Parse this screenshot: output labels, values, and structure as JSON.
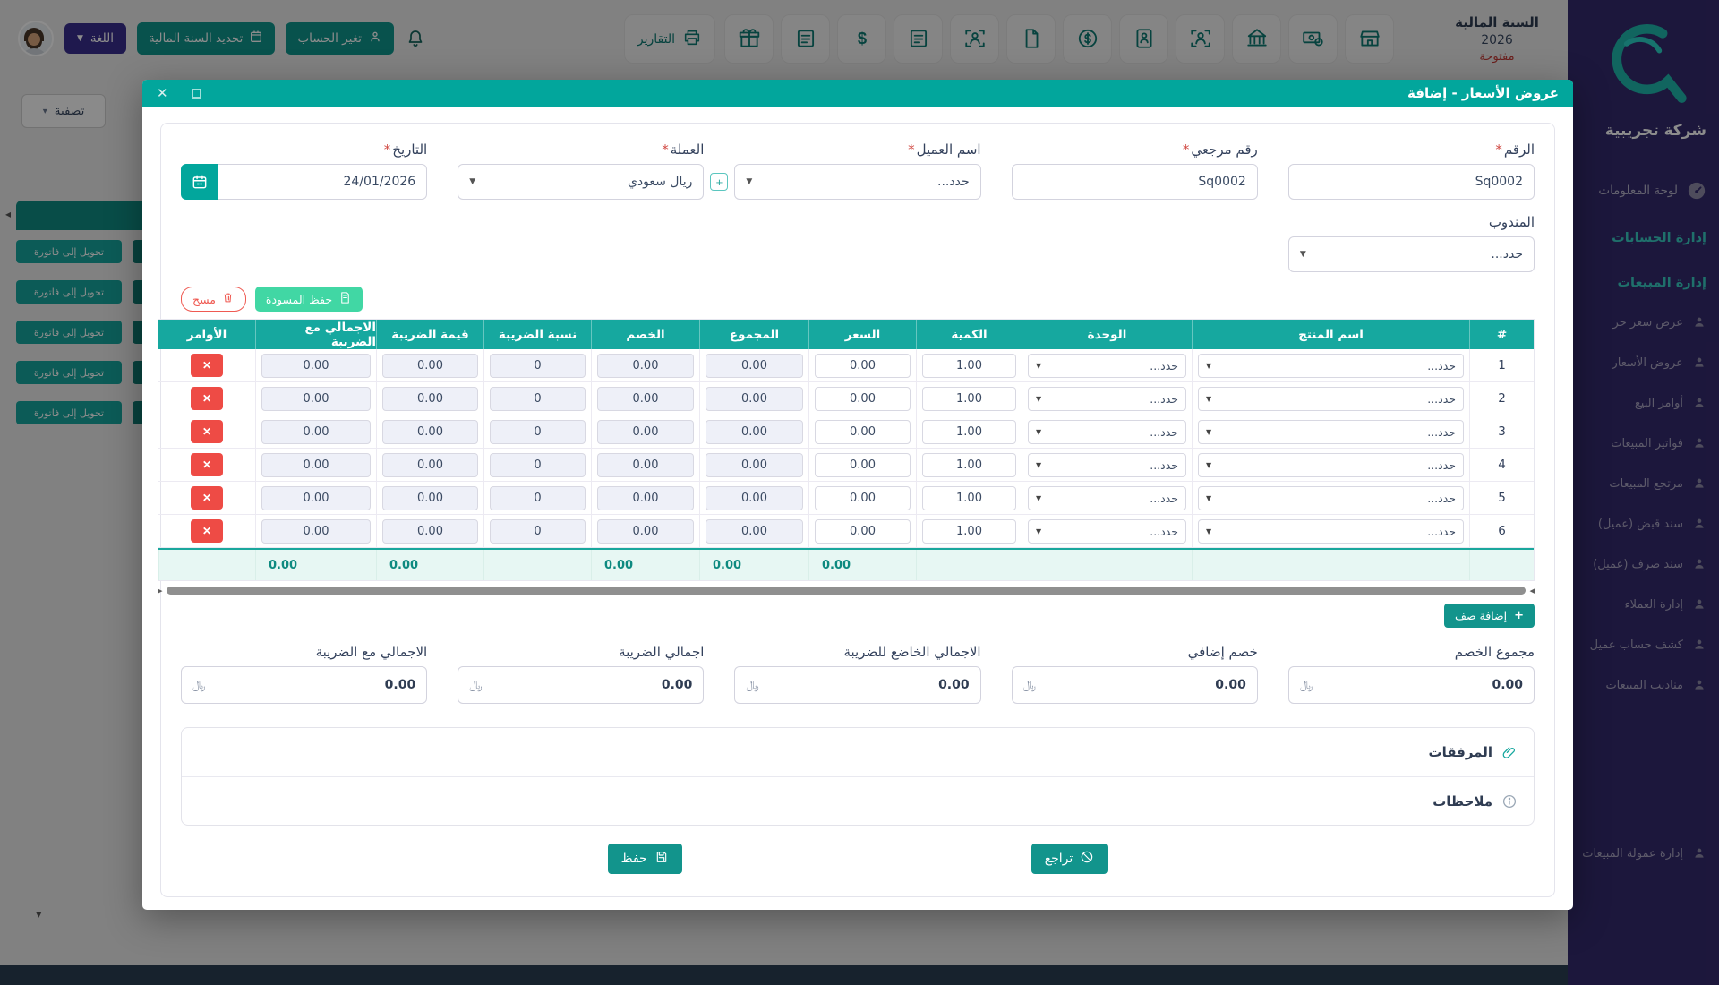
{
  "colors": {
    "teal_primary": "#0f958d",
    "teal_header": "#02a69c",
    "table_header_teal": "#16a89f",
    "mint": "#41d7a4",
    "red": "#ee4b45",
    "sidebar_purple": "#342a6e",
    "language_purple": "#3a2f8f",
    "status_red": "#c43a35"
  },
  "topbar": {
    "fiscal": {
      "title": "السنة المالية",
      "year": "2026",
      "status": "مفتوحة"
    },
    "reports_label": "التقارير",
    "icon_buttons": [
      "store-icon",
      "money-bill-icon",
      "bank-icon",
      "user-scan-icon",
      "id-card-icon",
      "coin-dollar-icon",
      "document-icon",
      "user-scan-icon",
      "clipboard-list-icon",
      "dollar-icon",
      "clipboard-list-icon",
      "gift-icon"
    ],
    "change_account_label": "تغير الحساب",
    "select_fiscal_label": "تحديد السنة المالية",
    "language_label": "اللغة"
  },
  "sidebar": {
    "company": "شركة تجريبية",
    "dashboard_label": "لوحة المعلومات",
    "section_accounts": "إدارة الحسابات",
    "section_sales": "إدارة المبيعات",
    "items": [
      "عرض سعر حر",
      "عروض الأسعار",
      "أوامر البيع",
      "فواتير المبيعات",
      "مرتجع المبيعات",
      "سند قبض (عميل)",
      "سند صرف (عميل)",
      "إدارة العملاء",
      "كشف حساب عميل",
      "مناديب المبيعات"
    ],
    "bottom_item": "إدارة عمولة المبيعات"
  },
  "background": {
    "filter_label": "تصفية",
    "convert_button_label": "تحويل إلى فاتورة",
    "row_count": 5
  },
  "modal": {
    "title": "عروض الأسعار - إضافة",
    "fields": {
      "number": {
        "label": "الرقم",
        "value": "Sq0002"
      },
      "reference": {
        "label": "رقم مرجعي",
        "value": "Sq0002"
      },
      "customer": {
        "label": "اسم العميل",
        "value": "حدد..."
      },
      "currency": {
        "label": "العملة",
        "value": "ريال سعودي"
      },
      "date": {
        "label": "التاريخ",
        "value": "24/01/2026"
      },
      "agent": {
        "label": "المندوب",
        "value": "حدد..."
      }
    },
    "clear_label": "مسح",
    "save_draft_label": "حفظ المسودة",
    "table": {
      "headers": [
        "#",
        "اسم المنتج",
        "الوحدة",
        "الكمية",
        "السعر",
        "المجموع",
        "الخصم",
        "نسبة الضريبة",
        "قيمة الضريبة",
        "الاجمالي مع الضريبة",
        "الأوامر"
      ],
      "rows": [
        {
          "num": "1",
          "product": "حدد...",
          "unit": "حدد...",
          "qty": "1.00",
          "price": "0.00",
          "total": "0.00",
          "discount": "0.00",
          "tax_rate": "0",
          "tax_value": "0.00",
          "grand": "0.00"
        },
        {
          "num": "2",
          "product": "حدد...",
          "unit": "حدد...",
          "qty": "1.00",
          "price": "0.00",
          "total": "0.00",
          "discount": "0.00",
          "tax_rate": "0",
          "tax_value": "0.00",
          "grand": "0.00"
        },
        {
          "num": "3",
          "product": "حدد...",
          "unit": "حدد...",
          "qty": "1.00",
          "price": "0.00",
          "total": "0.00",
          "discount": "0.00",
          "tax_rate": "0",
          "tax_value": "0.00",
          "grand": "0.00"
        },
        {
          "num": "4",
          "product": "حدد...",
          "unit": "حدد...",
          "qty": "1.00",
          "price": "0.00",
          "total": "0.00",
          "discount": "0.00",
          "tax_rate": "0",
          "tax_value": "0.00",
          "grand": "0.00"
        },
        {
          "num": "5",
          "product": "حدد...",
          "unit": "حدد...",
          "qty": "1.00",
          "price": "0.00",
          "total": "0.00",
          "discount": "0.00",
          "tax_rate": "0",
          "tax_value": "0.00",
          "grand": "0.00"
        },
        {
          "num": "6",
          "product": "حدد...",
          "unit": "حدد...",
          "qty": "1.00",
          "price": "0.00",
          "total": "0.00",
          "discount": "0.00",
          "tax_rate": "0",
          "tax_value": "0.00",
          "grand": "0.00"
        }
      ],
      "totals": {
        "price": "0.00",
        "total": "0.00",
        "discount": "0.00",
        "tax_value": "0.00",
        "grand": "0.00"
      }
    },
    "add_row_label": "إضافة صف",
    "summary": [
      {
        "label": "مجموع الخصم",
        "value": "0.00",
        "currency": "﷼"
      },
      {
        "label": "خصم إضافي",
        "value": "0.00",
        "currency": "﷼"
      },
      {
        "label": "الاجمالي الخاضع للضريبة",
        "value": "0.00",
        "currency": "﷼"
      },
      {
        "label": "اجمالي الضريبة",
        "value": "0.00",
        "currency": "﷼"
      },
      {
        "label": "الاجمالي مع الضريبة",
        "value": "0.00",
        "currency": "﷼"
      }
    ],
    "attachments_label": "المرفقات",
    "notes_label": "ملاحظات",
    "save_label": "حفظ",
    "back_label": "تراجع"
  }
}
